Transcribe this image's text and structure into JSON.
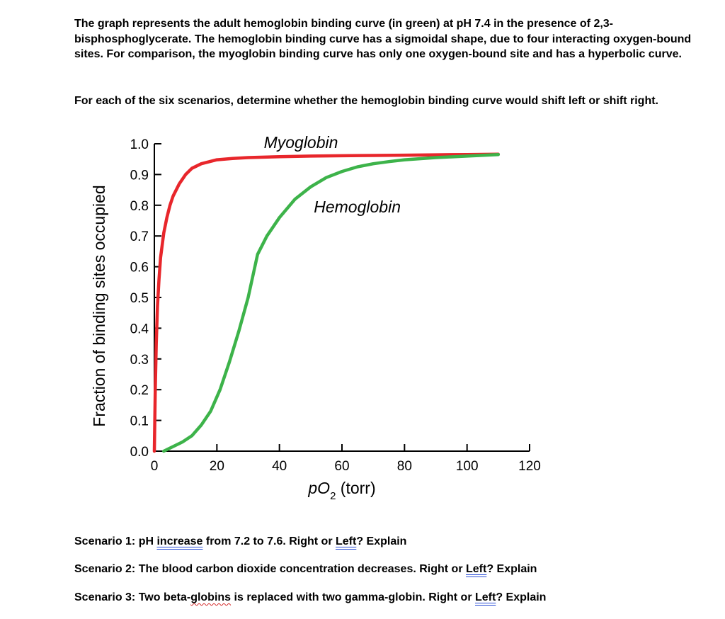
{
  "intro": "The graph represents the adult hemoglobin binding curve (in green) at pH 7.4 in the presence of 2,3-bisphosphoglycerate. The hemoglobin binding curve has a sigmoidal shape, due to four interacting oxygen-bound sites. For comparison, the myoglobin binding curve has only one oxygen-bound site and has a hyperbolic curve.",
  "prompt": "For each of the six scenarios, determine whether the hemoglobin binding curve would shift left or shift right.",
  "scenarios": [
    {
      "pre": "Scenario 1: pH ",
      "emph": "increase",
      "mid": " from 7.2 to 7.6.  Right or ",
      "emph2": "Left",
      "post": "? Explain"
    },
    {
      "pre": "Scenario 2: The blood carbon dioxide concentration decreases. Right or ",
      "emph": "Left",
      "post": "? Explain"
    },
    {
      "pre": "Scenario 3: Two beta-",
      "emph": "globins",
      "mid": " is replaced with two gamma-globin. Right or ",
      "emph2": "Left",
      "post": "? Explain"
    }
  ],
  "chart_data": {
    "type": "line",
    "title": "",
    "xlabel_main": "pO",
    "xlabel_sub": "2",
    "xlabel_unit": "(torr)",
    "ylabel": "Fraction of binding sites occupied",
    "xlim": [
      0,
      120
    ],
    "ylim": [
      0.0,
      1.0
    ],
    "xticks": [
      0,
      20,
      40,
      60,
      80,
      100,
      120
    ],
    "xtick_labels": [
      "0",
      "20",
      "40",
      "60",
      "80",
      "100",
      "120"
    ],
    "yticks": [
      0.0,
      0.1,
      0.2,
      0.3,
      0.4,
      0.5,
      0.6,
      0.7,
      0.8,
      0.9,
      1.0
    ],
    "ytick_labels": [
      "0.0",
      "0.1",
      "0.2",
      "0.3",
      "0.4",
      "0.5",
      "0.6",
      "0.7",
      "0.8",
      "0.9",
      "1.0"
    ],
    "series": [
      {
        "name": "Myoglobin",
        "color": "#e8262b",
        "x": [
          0,
          0.3,
          0.6,
          1,
          1.5,
          2,
          3,
          4,
          5,
          6,
          8,
          10,
          12,
          15,
          20,
          25,
          30,
          40,
          50,
          60,
          70,
          80,
          90,
          100,
          110
        ],
        "y": [
          0.0,
          0.2,
          0.35,
          0.47,
          0.56,
          0.63,
          0.71,
          0.76,
          0.8,
          0.83,
          0.87,
          0.9,
          0.92,
          0.935,
          0.948,
          0.952,
          0.955,
          0.958,
          0.96,
          0.961,
          0.962,
          0.963,
          0.964,
          0.965,
          0.966
        ]
      },
      {
        "name": "Hemoglobin",
        "color": "#3db34a",
        "x": [
          3,
          6,
          9,
          12,
          15,
          18,
          21,
          24,
          27,
          30,
          33,
          36,
          40,
          45,
          50,
          55,
          60,
          65,
          70,
          75,
          80,
          90,
          100,
          110
        ],
        "y": [
          0.0,
          0.015,
          0.03,
          0.05,
          0.085,
          0.13,
          0.2,
          0.29,
          0.39,
          0.5,
          0.64,
          0.7,
          0.76,
          0.82,
          0.86,
          0.89,
          0.91,
          0.925,
          0.935,
          0.942,
          0.948,
          0.955,
          0.96,
          0.965
        ]
      }
    ],
    "annotations": [
      {
        "text": "Myoglobin",
        "x": 35,
        "y": 1.0
      },
      {
        "text": "Hemoglobin",
        "x": 51,
        "y": 0.79
      }
    ]
  }
}
